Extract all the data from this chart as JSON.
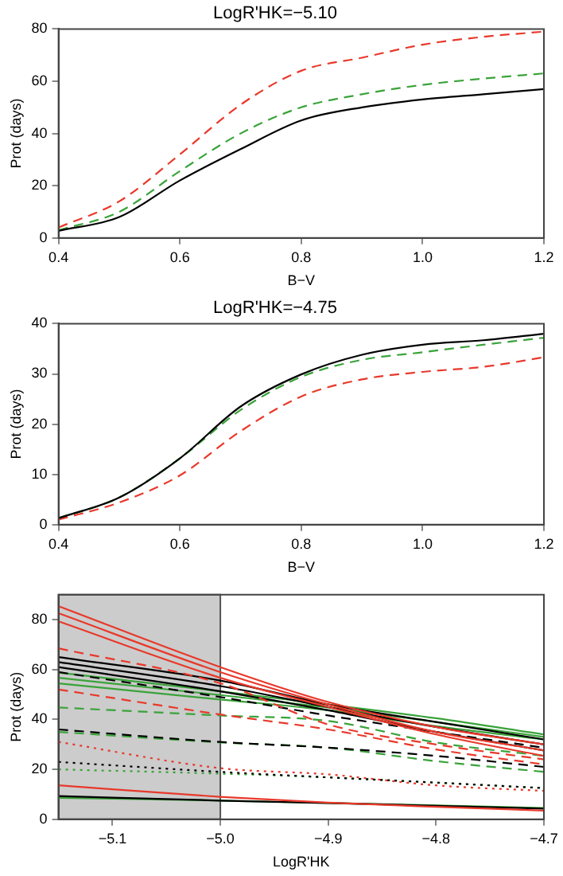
{
  "chart_data": [
    {
      "type": "line",
      "title": "LogR'HK=−5.10",
      "xlabel": "B−V",
      "ylabel": "Prot (days)",
      "xlim": [
        0.4,
        1.2
      ],
      "ylim": [
        0,
        80
      ],
      "xticks": [
        0.4,
        0.6,
        0.8,
        {
          "value": 1.0,
          "label": "1.0"
        },
        1.2
      ],
      "yticks": [
        0,
        20,
        40,
        60,
        80
      ],
      "grid": false,
      "legend": false,
      "marker": "none",
      "x": [
        0.4,
        0.5,
        0.6,
        0.7,
        0.8,
        0.9,
        1.0,
        1.1,
        1.2
      ],
      "series": [
        {
          "color": "#000000",
          "line_style": "solid",
          "values": [
            2.7,
            8,
            22,
            34,
            45,
            50,
            53,
            55,
            57
          ]
        },
        {
          "color": "#3aa33a",
          "line_style": "dashed",
          "values": [
            3,
            10,
            25.6,
            40,
            50,
            55,
            58.6,
            61,
            63
          ]
        },
        {
          "color": "#e8392b",
          "line_style": "dashed",
          "values": [
            4,
            14,
            32,
            51,
            64,
            69,
            74,
            77,
            79
          ]
        }
      ]
    },
    {
      "type": "line",
      "title": "LogR'HK=−4.75",
      "xlabel": "B−V",
      "ylabel": "Prot (days)",
      "xlim": [
        0.4,
        1.2
      ],
      "ylim": [
        0,
        40
      ],
      "xticks": [
        0.4,
        0.6,
        0.8,
        {
          "value": 1.0,
          "label": "1.0"
        },
        1.2
      ],
      "yticks": [
        0,
        10,
        20,
        30,
        40
      ],
      "grid": false,
      "legend": false,
      "marker": "none",
      "x": [
        0.4,
        0.5,
        0.6,
        0.7,
        0.8,
        0.9,
        1.0,
        1.1,
        1.2
      ],
      "series": [
        {
          "color": "#000000",
          "line_style": "solid",
          "values": [
            1.3,
            5.4,
            13.2,
            23.5,
            29.9,
            33.8,
            35.8,
            36.7,
            38
          ]
        },
        {
          "color": "#3aa33a",
          "line_style": "dashed",
          "values": [
            1.3,
            5.4,
            13.2,
            22.8,
            29.4,
            32.8,
            34.3,
            35.8,
            37.2
          ]
        },
        {
          "color": "#e8392b",
          "line_style": "dashed",
          "values": [
            1,
            4.4,
            9.8,
            18.6,
            25.5,
            28.9,
            30.4,
            31.4,
            33.3
          ]
        }
      ]
    },
    {
      "type": "line",
      "xlabel": "LogR'HK",
      "ylabel": "Prot (days)",
      "xlim": [
        -5.15,
        -4.7
      ],
      "ylim": [
        0,
        90
      ],
      "xticks": [
        {
          "value": -5.1,
          "label": "−5.1"
        },
        {
          "value": -5.0,
          "label": "−5.0"
        },
        {
          "value": -4.9,
          "label": "−4.9"
        },
        {
          "value": -4.8,
          "label": "−4.8"
        },
        {
          "value": -4.7,
          "label": "−4.7"
        }
      ],
      "yticks": [
        0,
        20,
        40,
        60,
        80
      ],
      "grid": false,
      "legend": false,
      "marker": "none",
      "bands": [
        {
          "axis": "x",
          "from": -5.15,
          "to": -5.0,
          "color": "#555555"
        }
      ],
      "x": [
        -5.15,
        -5.0,
        -4.9,
        -4.8,
        -4.7
      ],
      "series": [
        {
          "color": "#e8392b",
          "line_style": "solid",
          "values": [
            85.4,
            61,
            47,
            37,
            30
          ]
        },
        {
          "color": "#e8392b",
          "line_style": "solid",
          "values": [
            82.6,
            59,
            46,
            35,
            27.6
          ]
        },
        {
          "color": "#e8392b",
          "line_style": "solid",
          "values": [
            79.3,
            56.7,
            45,
            34,
            25.4
          ]
        },
        {
          "color": "#e8392b",
          "line_style": "dashed",
          "values": [
            68.5,
            54.5,
            38,
            30,
            24
          ]
        },
        {
          "color": "#e8392b",
          "line_style": "dashed",
          "values": [
            52,
            42,
            36,
            28,
            22
          ]
        },
        {
          "color": "#e8392b",
          "line_style": "dotted",
          "values": [
            31,
            20.5,
            18,
            13.6,
            11.4
          ]
        },
        {
          "color": "#e8392b",
          "line_style": "solid",
          "values": [
            13.6,
            9,
            6.7,
            5,
            3.5
          ]
        },
        {
          "color": "#000000",
          "line_style": "solid",
          "values": [
            65,
            55.6,
            46,
            39,
            32
          ]
        },
        {
          "color": "#000000",
          "line_style": "solid",
          "values": [
            63,
            53.4,
            45,
            37,
            30
          ]
        },
        {
          "color": "#000000",
          "line_style": "solid",
          "values": [
            61,
            51.3,
            43.7,
            35,
            27.6
          ]
        },
        {
          "color": "#000000",
          "line_style": "dashed",
          "values": [
            59,
            49,
            41.6,
            35,
            28.7
          ]
        },
        {
          "color": "#000000",
          "line_style": "dashed",
          "values": [
            36,
            31,
            28.7,
            25.4,
            21
          ]
        },
        {
          "color": "#000000",
          "line_style": "dotted",
          "values": [
            23,
            19,
            16.8,
            14.7,
            12.5
          ]
        },
        {
          "color": "#000000",
          "line_style": "solid",
          "values": [
            9.3,
            7.5,
            6.5,
            5.4,
            4.3
          ]
        },
        {
          "color": "#3aa33a",
          "line_style": "solid",
          "values": [
            58.8,
            51.3,
            46,
            40.5,
            34
          ]
        },
        {
          "color": "#3aa33a",
          "line_style": "solid",
          "values": [
            56.7,
            49.8,
            44.8,
            39,
            33
          ]
        },
        {
          "color": "#3aa33a",
          "line_style": "solid",
          "values": [
            54.5,
            48,
            43.7,
            37.3,
            32
          ]
        },
        {
          "color": "#3aa33a",
          "line_style": "dashed",
          "values": [
            44.8,
            41.6,
            39.4,
            30.8,
            25.4
          ]
        },
        {
          "color": "#3aa33a",
          "line_style": "dashed",
          "values": [
            35,
            30.8,
            28.7,
            23.3,
            19
          ]
        },
        {
          "color": "#3aa33a",
          "line_style": "dotted",
          "values": [
            20,
            18.3,
            16.8,
            14.7,
            12.5
          ]
        },
        {
          "color": "#3aa33a",
          "line_style": "solid",
          "values": [
            8.6,
            7.5,
            6.5,
            5.6,
            4.5
          ]
        }
      ]
    }
  ]
}
